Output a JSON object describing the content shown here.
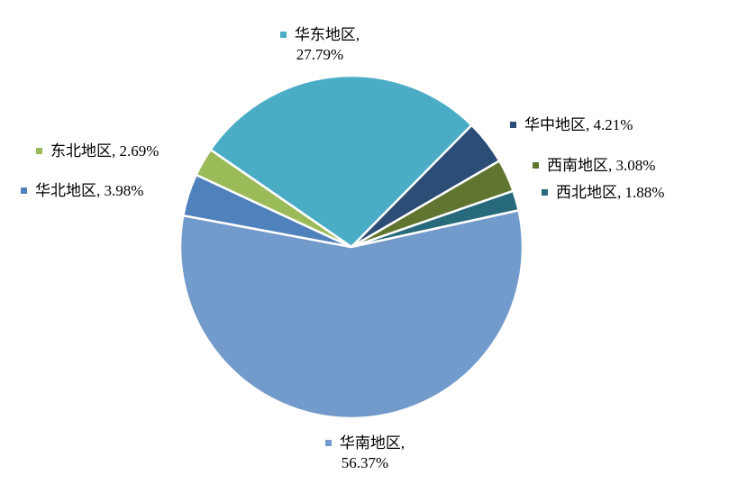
{
  "chart_data": {
    "type": "pie",
    "title": "",
    "start": "华东地区",
    "direction": "clockwise",
    "slices": [
      {
        "label": "华东地区",
        "value": 27.79,
        "text": "27.79%",
        "color": "#4BACC6"
      },
      {
        "label": "华中地区",
        "value": 4.21,
        "text": "4.21%",
        "color": "#2C4D75"
      },
      {
        "label": "西南地区",
        "value": 3.08,
        "text": "3.08%",
        "color": "#5F7530"
      },
      {
        "label": "西北地区",
        "value": 1.88,
        "text": "1.88%",
        "color": "#276A7C"
      },
      {
        "label": "华南地区",
        "value": 56.37,
        "text": "56.37%",
        "color": "#729ACA"
      },
      {
        "label": "华北地区",
        "value": 3.98,
        "text": "3.98%",
        "color": "#4F81BD"
      },
      {
        "label": "东北地区",
        "value": 2.69,
        "text": "2.69%",
        "color": "#9BBB59"
      }
    ]
  }
}
